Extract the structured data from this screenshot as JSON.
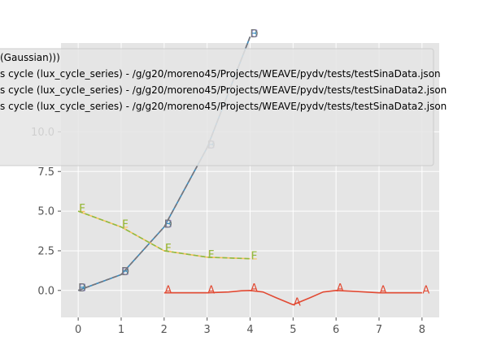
{
  "chart_data": {
    "type": "line",
    "title": "",
    "xlabel": "",
    "ylabel": "",
    "xlim": [
      -0.4,
      8.4
    ],
    "ylim": [
      -1.7,
      15.6
    ],
    "xticks": [
      "0",
      "1",
      "2",
      "3",
      "4",
      "5",
      "6",
      "7",
      "8"
    ],
    "yticks": [
      "0.0",
      "2.5",
      "5.0",
      "7.5",
      "10.0"
    ],
    "grid": true,
    "legend_position": "top-left",
    "series": [
      {
        "legend": "(Gaussian)))",
        "marker": "A",
        "color": "#e24a33",
        "style": "solid",
        "marker_x": [
          2,
          3,
          4,
          5,
          6,
          7,
          8
        ],
        "x": [
          2,
          2.5,
          3,
          3.5,
          3.8,
          4,
          4.3,
          4.6,
          5,
          5.4,
          5.7,
          6,
          6.4,
          7,
          8
        ],
        "values": [
          -0.15,
          -0.15,
          -0.15,
          -0.1,
          -0.02,
          0.0,
          -0.1,
          -0.45,
          -0.9,
          -0.45,
          -0.1,
          0.0,
          -0.05,
          -0.15,
          -0.15
        ]
      },
      {
        "legend": "s cycle (lux_cycle_series) - /g/g20/moreno45/Projects/WEAVE/pydv/tests/testSinaData.json",
        "marker": "B",
        "color": "#348abd",
        "style": "solid",
        "x": [
          0,
          1,
          2,
          3,
          4
        ],
        "values": [
          0,
          1,
          4,
          9,
          16
        ]
      },
      {
        "legend": "s cycle (lux_cycle_series) - /g/g20/moreno45/Projects/WEAVE/pydv/tests/testSinaData.json",
        "marker": "C",
        "color": "#988ed5",
        "style": "dashed",
        "x": [
          0,
          1,
          2,
          3,
          4
        ],
        "values": [
          0,
          1,
          4,
          9,
          16
        ]
      },
      {
        "legend": "s cycle (lux_cycle_series) - /g/g20/moreno45/Projects/WEAVE/pydv/tests/testSinaData2.json",
        "marker": "D",
        "color": "#777777",
        "style": "dashed",
        "x": [
          0,
          1,
          2,
          3,
          4
        ],
        "values": [
          0,
          1,
          4,
          9,
          16
        ]
      },
      {
        "legend": "s cycle (lux_cycle_series) - /g/g20/moreno45/Projects/WEAVE/pydv/tests/testSinaData2.json",
        "marker": "E",
        "color": "#fbc15e",
        "style": "solid",
        "x": [
          0,
          1,
          2,
          3,
          4
        ],
        "values": [
          5,
          4,
          2.5,
          2.1,
          2.0
        ]
      },
      {
        "legend": "",
        "marker": "F",
        "color": "#8eba42",
        "style": "dashed",
        "x": [
          0,
          1,
          2,
          3,
          4
        ],
        "values": [
          5,
          4,
          2.5,
          2.1,
          2.0
        ]
      }
    ]
  }
}
